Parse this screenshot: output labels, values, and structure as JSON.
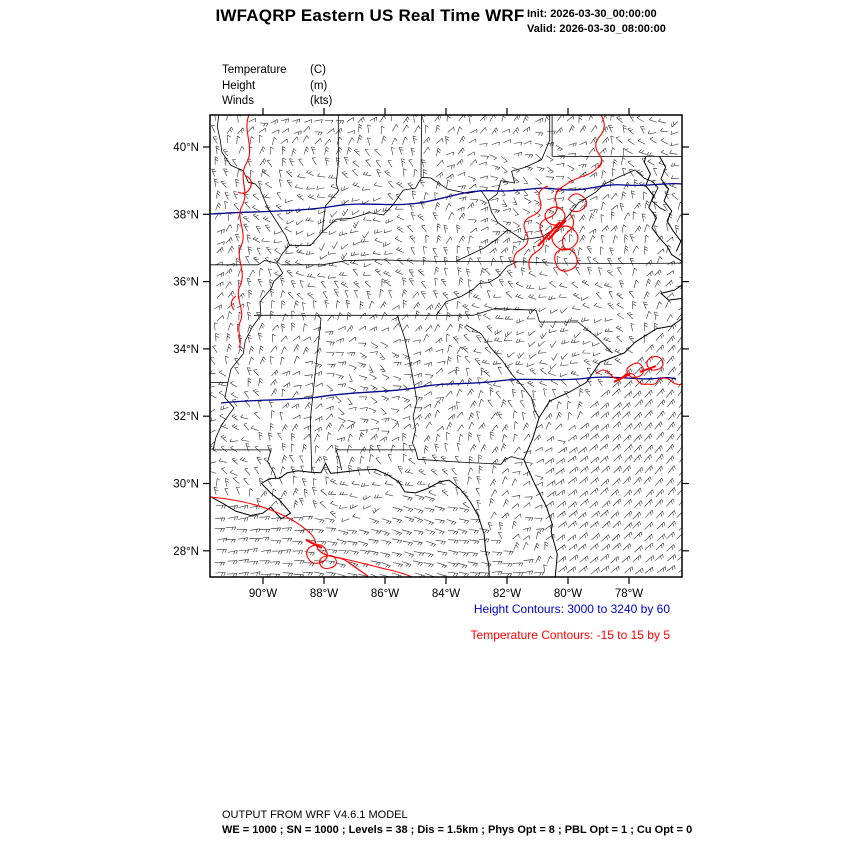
{
  "header": {
    "title": "IWFAQRP Eastern US Real Time WRF",
    "init": "Init: 2026-03-30_00:00:00",
    "valid": "Valid: 2026-03-30_08:00:00"
  },
  "fields": [
    {
      "name": "Temperature",
      "unit": "(C)"
    },
    {
      "name": "Height",
      "unit": "(m)"
    },
    {
      "name": "Winds",
      "unit": "(kts)"
    }
  ],
  "axes": {
    "lat_ticks": [
      {
        "label": "40°N",
        "lat": 40
      },
      {
        "label": "38°N",
        "lat": 38
      },
      {
        "label": "36°N",
        "lat": 36
      },
      {
        "label": "34°N",
        "lat": 34
      },
      {
        "label": "32°N",
        "lat": 32
      },
      {
        "label": "30°N",
        "lat": 30
      },
      {
        "label": "28°N",
        "lat": 28
      }
    ],
    "lon_ticks": [
      {
        "label": "90°W",
        "lon": -90
      },
      {
        "label": "88°W",
        "lon": -88
      },
      {
        "label": "86°W",
        "lon": -86
      },
      {
        "label": "84°W",
        "lon": -84
      },
      {
        "label": "82°W",
        "lon": -82
      },
      {
        "label": "80°W",
        "lon": -80
      },
      {
        "label": "78°W",
        "lon": -78
      }
    ]
  },
  "legend": {
    "height_contours": {
      "text": "Height Contours: 3000 to 3240 by 60",
      "color": "#0000cd"
    },
    "temperature_contours": {
      "text": "Temperature Contours: -15 to 15 by 5",
      "color": "#ff0000"
    }
  },
  "footer": {
    "line1": "OUTPUT FROM WRF V4.6.1 MODEL",
    "line2": "WE = 1000 ; SN = 1000 ; Levels = 38 ; Dis = 1.5km ; Phys Opt = 8 ; PBL Opt = 1 ; Cu Opt = 0"
  },
  "map": {
    "height_contour_color": "#00008b",
    "temperature_contour_color": "#ff0000",
    "boundary_color": "#000000",
    "wind_barb_color": "#222222",
    "wind_seed": 12
  },
  "chart_data": {
    "type": "map",
    "title": "IWFAQRP Eastern US Real Time WRF",
    "init_time": "2026-03-30_00:00:00",
    "valid_time": "2026-03-30_08:00:00",
    "variables": [
      "Temperature (C)",
      "Height (m)",
      "Winds (kts)"
    ],
    "lat_range_deg_N": [
      28,
      40
    ],
    "lon_range_deg_W": [
      90,
      78
    ],
    "height_contours_m": {
      "min": 3000,
      "max": 3240,
      "interval": 60
    },
    "temperature_contours_C": {
      "min": -15,
      "max": 15,
      "interval": 5
    },
    "model": "WRF V4.6.1",
    "grid": {
      "WE": 1000,
      "SN": 1000,
      "Levels": 38,
      "Dis_km": 1.5,
      "Phys_Opt": 8,
      "PBL_Opt": 1,
      "Cu_Opt": 0
    }
  }
}
